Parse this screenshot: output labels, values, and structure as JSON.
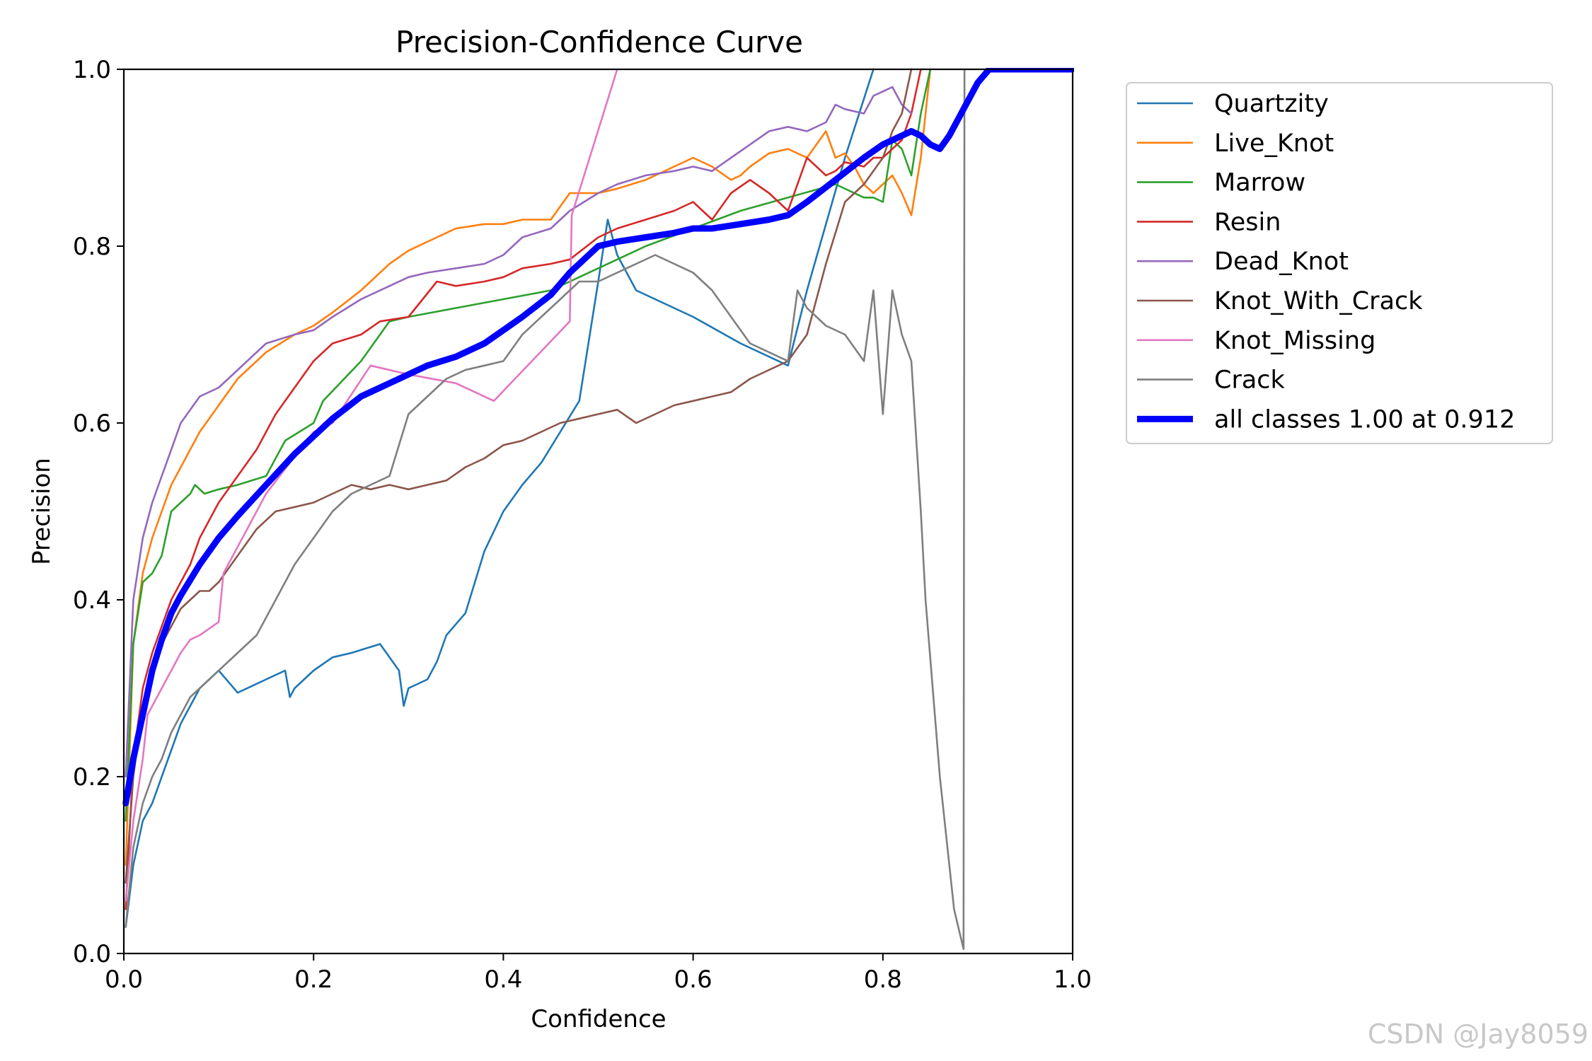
{
  "chart_data": {
    "type": "line",
    "title": "Precision-Confidence Curve",
    "xlabel": "Confidence",
    "ylabel": "Precision",
    "xlim": [
      0,
      1
    ],
    "ylim": [
      0,
      1
    ],
    "xticks": [
      "0.0",
      "0.2",
      "0.4",
      "0.6",
      "0.8",
      "1.0"
    ],
    "yticks": [
      "0.0",
      "0.2",
      "0.4",
      "0.6",
      "0.8",
      "1.0"
    ],
    "grid": false,
    "legend_position": "outside-right-top",
    "series": [
      {
        "name": "Quartzity",
        "color": "#1f77b4",
        "width": "thin",
        "x": [
          0.002,
          0.01,
          0.02,
          0.03,
          0.04,
          0.05,
          0.06,
          0.07,
          0.08,
          0.09,
          0.1,
          0.12,
          0.15,
          0.17,
          0.175,
          0.18,
          0.2,
          0.22,
          0.24,
          0.27,
          0.29,
          0.295,
          0.3,
          0.32,
          0.33,
          0.34,
          0.36,
          0.37,
          0.38,
          0.4,
          0.42,
          0.44,
          0.46,
          0.48,
          0.5,
          0.51,
          0.52,
          0.54,
          0.6,
          0.65,
          0.7,
          0.72,
          0.76,
          0.79
        ],
        "y": [
          0.03,
          0.1,
          0.15,
          0.17,
          0.2,
          0.23,
          0.26,
          0.28,
          0.3,
          0.31,
          0.32,
          0.295,
          0.31,
          0.32,
          0.29,
          0.3,
          0.32,
          0.335,
          0.34,
          0.35,
          0.32,
          0.28,
          0.3,
          0.31,
          0.33,
          0.36,
          0.385,
          0.42,
          0.455,
          0.5,
          0.53,
          0.555,
          0.59,
          0.625,
          0.76,
          0.83,
          0.79,
          0.75,
          0.72,
          0.69,
          0.665,
          0.75,
          0.9,
          1.0
        ]
      },
      {
        "name": "Live_Knot",
        "color": "#ff7f0e",
        "width": "thin",
        "x": [
          0.002,
          0.01,
          0.02,
          0.03,
          0.04,
          0.05,
          0.06,
          0.07,
          0.08,
          0.1,
          0.12,
          0.15,
          0.18,
          0.2,
          0.22,
          0.25,
          0.28,
          0.3,
          0.33,
          0.35,
          0.38,
          0.4,
          0.42,
          0.45,
          0.47,
          0.5,
          0.52,
          0.55,
          0.58,
          0.6,
          0.62,
          0.64,
          0.65,
          0.66,
          0.68,
          0.7,
          0.72,
          0.73,
          0.74,
          0.75,
          0.76,
          0.77,
          0.78,
          0.79,
          0.8,
          0.81,
          0.82,
          0.83,
          0.84,
          0.85
        ],
        "y": [
          0.1,
          0.35,
          0.43,
          0.47,
          0.5,
          0.53,
          0.55,
          0.57,
          0.59,
          0.62,
          0.65,
          0.68,
          0.7,
          0.71,
          0.725,
          0.75,
          0.78,
          0.795,
          0.81,
          0.82,
          0.825,
          0.825,
          0.83,
          0.83,
          0.86,
          0.86,
          0.865,
          0.875,
          0.89,
          0.9,
          0.89,
          0.875,
          0.88,
          0.89,
          0.905,
          0.91,
          0.9,
          0.915,
          0.93,
          0.9,
          0.905,
          0.89,
          0.87,
          0.86,
          0.87,
          0.88,
          0.86,
          0.835,
          0.9,
          1.0
        ]
      },
      {
        "name": "Marrow",
        "color": "#2ca02c",
        "width": "thin",
        "x": [
          0.002,
          0.01,
          0.02,
          0.03,
          0.04,
          0.05,
          0.06,
          0.07,
          0.075,
          0.085,
          0.1,
          0.12,
          0.15,
          0.17,
          0.2,
          0.21,
          0.25,
          0.28,
          0.3,
          0.35,
          0.4,
          0.45,
          0.5,
          0.55,
          0.6,
          0.65,
          0.7,
          0.75,
          0.78,
          0.79,
          0.8,
          0.81,
          0.82,
          0.83,
          0.84,
          0.85
        ],
        "y": [
          0.15,
          0.35,
          0.42,
          0.43,
          0.45,
          0.5,
          0.51,
          0.52,
          0.53,
          0.52,
          0.525,
          0.53,
          0.54,
          0.58,
          0.6,
          0.625,
          0.67,
          0.715,
          0.72,
          0.73,
          0.74,
          0.75,
          0.775,
          0.8,
          0.82,
          0.84,
          0.855,
          0.87,
          0.855,
          0.855,
          0.85,
          0.92,
          0.91,
          0.88,
          0.95,
          1.0
        ]
      },
      {
        "name": "Resin",
        "color": "#d62728",
        "width": "thin",
        "x": [
          0.002,
          0.01,
          0.02,
          0.03,
          0.04,
          0.05,
          0.06,
          0.07,
          0.08,
          0.09,
          0.1,
          0.12,
          0.14,
          0.16,
          0.18,
          0.2,
          0.22,
          0.25,
          0.27,
          0.3,
          0.33,
          0.35,
          0.38,
          0.4,
          0.42,
          0.45,
          0.47,
          0.5,
          0.52,
          0.55,
          0.58,
          0.6,
          0.62,
          0.64,
          0.66,
          0.68,
          0.7,
          0.72,
          0.74,
          0.75,
          0.76,
          0.78,
          0.79,
          0.8,
          0.82,
          0.83,
          0.84
        ],
        "y": [
          0.05,
          0.22,
          0.3,
          0.34,
          0.37,
          0.4,
          0.42,
          0.44,
          0.47,
          0.49,
          0.51,
          0.54,
          0.57,
          0.61,
          0.64,
          0.67,
          0.69,
          0.7,
          0.715,
          0.72,
          0.76,
          0.755,
          0.76,
          0.765,
          0.775,
          0.78,
          0.785,
          0.81,
          0.82,
          0.83,
          0.84,
          0.85,
          0.83,
          0.86,
          0.875,
          0.86,
          0.84,
          0.9,
          0.88,
          0.885,
          0.895,
          0.89,
          0.9,
          0.9,
          0.92,
          0.95,
          1.0
        ]
      },
      {
        "name": "Dead_Knot",
        "color": "#9467bd",
        "width": "thin",
        "x": [
          0.002,
          0.01,
          0.02,
          0.03,
          0.04,
          0.05,
          0.06,
          0.07,
          0.08,
          0.1,
          0.12,
          0.15,
          0.18,
          0.2,
          0.22,
          0.25,
          0.28,
          0.3,
          0.32,
          0.35,
          0.38,
          0.4,
          0.42,
          0.45,
          0.47,
          0.5,
          0.52,
          0.55,
          0.58,
          0.6,
          0.62,
          0.64,
          0.66,
          0.68,
          0.7,
          0.72,
          0.74,
          0.75,
          0.76,
          0.78,
          0.79,
          0.8,
          0.81,
          0.82,
          0.83
        ],
        "y": [
          0.2,
          0.4,
          0.47,
          0.51,
          0.54,
          0.57,
          0.6,
          0.615,
          0.63,
          0.64,
          0.66,
          0.69,
          0.7,
          0.705,
          0.72,
          0.74,
          0.755,
          0.765,
          0.77,
          0.775,
          0.78,
          0.79,
          0.81,
          0.82,
          0.84,
          0.86,
          0.87,
          0.88,
          0.885,
          0.89,
          0.885,
          0.9,
          0.915,
          0.93,
          0.935,
          0.93,
          0.94,
          0.96,
          0.955,
          0.95,
          0.97,
          0.975,
          0.98,
          0.96,
          0.95
        ]
      },
      {
        "name": "Knot_With_Crack",
        "color": "#8c564b",
        "width": "thin",
        "x": [
          0.002,
          0.01,
          0.02,
          0.03,
          0.04,
          0.05,
          0.06,
          0.07,
          0.08,
          0.09,
          0.1,
          0.12,
          0.14,
          0.16,
          0.18,
          0.2,
          0.22,
          0.24,
          0.26,
          0.28,
          0.3,
          0.32,
          0.34,
          0.36,
          0.38,
          0.4,
          0.42,
          0.44,
          0.46,
          0.48,
          0.5,
          0.52,
          0.54,
          0.56,
          0.58,
          0.6,
          0.62,
          0.64,
          0.66,
          0.68,
          0.7,
          0.72,
          0.74,
          0.76,
          0.78,
          0.8,
          0.81,
          0.82,
          0.83
        ],
        "y": [
          0.08,
          0.2,
          0.28,
          0.32,
          0.35,
          0.37,
          0.39,
          0.4,
          0.41,
          0.41,
          0.42,
          0.45,
          0.48,
          0.5,
          0.505,
          0.51,
          0.52,
          0.53,
          0.525,
          0.53,
          0.525,
          0.53,
          0.535,
          0.55,
          0.56,
          0.575,
          0.58,
          0.59,
          0.6,
          0.605,
          0.61,
          0.615,
          0.6,
          0.61,
          0.62,
          0.625,
          0.63,
          0.635,
          0.65,
          0.66,
          0.67,
          0.7,
          0.78,
          0.85,
          0.87,
          0.9,
          0.93,
          0.95,
          1.0
        ]
      },
      {
        "name": "Knot_Missing",
        "color": "#e377c2",
        "width": "thin",
        "x": [
          0.002,
          0.01,
          0.02,
          0.025,
          0.03,
          0.04,
          0.05,
          0.06,
          0.07,
          0.08,
          0.1,
          0.105,
          0.12,
          0.15,
          0.2,
          0.22,
          0.26,
          0.3,
          0.35,
          0.39,
          0.47,
          0.472,
          0.52
        ],
        "y": [
          0.06,
          0.15,
          0.22,
          0.27,
          0.28,
          0.3,
          0.32,
          0.34,
          0.355,
          0.36,
          0.375,
          0.43,
          0.46,
          0.52,
          0.59,
          0.6,
          0.665,
          0.655,
          0.645,
          0.625,
          0.715,
          0.835,
          1.0
        ]
      },
      {
        "name": "Crack",
        "color": "#7f7f7f",
        "width": "thin",
        "x": [
          0.002,
          0.01,
          0.02,
          0.03,
          0.04,
          0.05,
          0.06,
          0.07,
          0.08,
          0.09,
          0.1,
          0.12,
          0.14,
          0.16,
          0.18,
          0.2,
          0.22,
          0.24,
          0.26,
          0.28,
          0.3,
          0.32,
          0.34,
          0.36,
          0.38,
          0.4,
          0.42,
          0.44,
          0.46,
          0.48,
          0.5,
          0.52,
          0.54,
          0.56,
          0.58,
          0.6,
          0.62,
          0.64,
          0.66,
          0.68,
          0.7,
          0.71,
          0.72,
          0.74,
          0.76,
          0.78,
          0.79,
          0.8,
          0.81,
          0.82,
          0.83,
          0.84,
          0.845,
          0.86,
          0.875,
          0.885,
          0.886,
          0.887
        ],
        "y": [
          0.03,
          0.12,
          0.17,
          0.2,
          0.22,
          0.25,
          0.27,
          0.29,
          0.3,
          0.31,
          0.32,
          0.34,
          0.36,
          0.4,
          0.44,
          0.47,
          0.5,
          0.52,
          0.53,
          0.54,
          0.61,
          0.63,
          0.65,
          0.66,
          0.665,
          0.67,
          0.7,
          0.72,
          0.74,
          0.76,
          0.76,
          0.77,
          0.78,
          0.79,
          0.78,
          0.77,
          0.75,
          0.72,
          0.69,
          0.68,
          0.67,
          0.75,
          0.73,
          0.71,
          0.7,
          0.67,
          0.75,
          0.61,
          0.75,
          0.7,
          0.67,
          0.5,
          0.4,
          0.2,
          0.05,
          0.005,
          1.0,
          1.0
        ]
      },
      {
        "name": "all classes 1.00 at 0.912",
        "color": "#0000ff",
        "width": "thick",
        "x": [
          0.002,
          0.01,
          0.02,
          0.03,
          0.04,
          0.05,
          0.06,
          0.08,
          0.1,
          0.12,
          0.15,
          0.18,
          0.2,
          0.22,
          0.25,
          0.28,
          0.3,
          0.32,
          0.35,
          0.38,
          0.4,
          0.42,
          0.45,
          0.47,
          0.49,
          0.5,
          0.52,
          0.55,
          0.58,
          0.6,
          0.62,
          0.65,
          0.68,
          0.7,
          0.72,
          0.75,
          0.78,
          0.8,
          0.82,
          0.83,
          0.84,
          0.85,
          0.86,
          0.87,
          0.88,
          0.89,
          0.9,
          0.912,
          0.95,
          1.0
        ],
        "y": [
          0.17,
          0.22,
          0.27,
          0.32,
          0.355,
          0.385,
          0.405,
          0.44,
          0.47,
          0.495,
          0.53,
          0.565,
          0.585,
          0.605,
          0.63,
          0.645,
          0.655,
          0.665,
          0.675,
          0.69,
          0.705,
          0.72,
          0.745,
          0.77,
          0.79,
          0.8,
          0.805,
          0.81,
          0.815,
          0.82,
          0.82,
          0.825,
          0.83,
          0.835,
          0.85,
          0.875,
          0.9,
          0.915,
          0.925,
          0.93,
          0.925,
          0.915,
          0.91,
          0.925,
          0.945,
          0.965,
          0.985,
          1.0,
          1.0,
          1.0
        ]
      }
    ]
  },
  "watermark": "CSDN @Jay8059"
}
